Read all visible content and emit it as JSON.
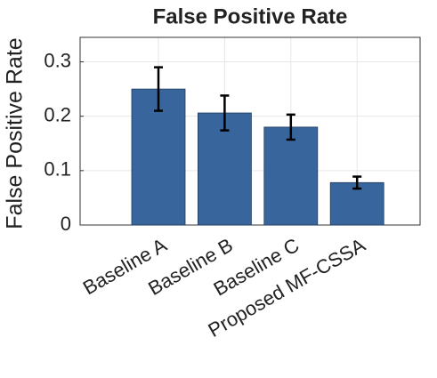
{
  "chart_data": {
    "type": "bar",
    "title": "False Positive Rate",
    "y_label": "False Positive Rate",
    "categories": [
      "Baseline A",
      "Baseline B",
      "Baseline C",
      "Proposed MF-CSSA"
    ],
    "values": [
      0.25,
      0.206,
      0.18,
      0.078
    ],
    "errors": [
      0.04,
      0.032,
      0.023,
      0.011
    ],
    "color": "#38659b",
    "ylim": [
      0,
      0.345
    ],
    "yticks": [
      0,
      0.1,
      0.2,
      0.3
    ],
    "grid": true
  }
}
